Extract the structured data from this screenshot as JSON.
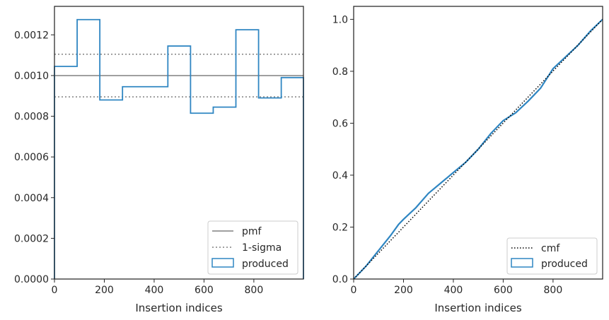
{
  "colors": {
    "produced": "#2f86c2",
    "reference": "#808080",
    "cmf": "#000000",
    "axes": "#262626",
    "legend_border": "#cccccc"
  },
  "chart_data": [
    {
      "type": "step",
      "xlabel": "Insertion indices",
      "ylabel": "",
      "xlim": [
        0,
        999
      ],
      "ylim": [
        0,
        0.00134
      ],
      "xticks": [
        0,
        200,
        400,
        600,
        800
      ],
      "xtick_labels": [
        "0",
        "200",
        "400",
        "600",
        "800"
      ],
      "yticks": [
        0,
        0.0002,
        0.0004,
        0.0006,
        0.0008,
        0.001,
        0.0012
      ],
      "ytick_labels": [
        "0.0000",
        "0.0002",
        "0.0004",
        "0.0006",
        "0.0008",
        "0.0010",
        "0.0012"
      ],
      "legend_position": "lower-right",
      "legend": [
        "pmf",
        "1-sigma",
        "produced"
      ],
      "grid": false,
      "pmf": 0.001,
      "sigma_band": [
        0.000895,
        0.001105
      ],
      "bin_edges": [
        0,
        91,
        182,
        273,
        364,
        455,
        546,
        637,
        728,
        819,
        910,
        999
      ],
      "produced": [
        0.001045,
        0.001275,
        0.00088,
        0.000945,
        0.000945,
        0.001145,
        0.000815,
        0.000845,
        0.001225,
        0.00089,
        0.00099
      ]
    },
    {
      "type": "line",
      "xlabel": "Insertion indices",
      "ylabel": "",
      "xlim": [
        0,
        999
      ],
      "ylim": [
        0,
        1.05
      ],
      "xticks": [
        0,
        200,
        400,
        600,
        800
      ],
      "xtick_labels": [
        "0",
        "200",
        "400",
        "600",
        "800"
      ],
      "yticks": [
        0,
        0.2,
        0.4,
        0.6,
        0.8,
        1.0
      ],
      "ytick_labels": [
        "0.0",
        "0.2",
        "0.4",
        "0.6",
        "0.8",
        "1.0"
      ],
      "legend_position": "lower-right",
      "legend": [
        "cmf",
        "produced"
      ],
      "grid": false,
      "cmf_x": [
        0,
        999
      ],
      "cmf_y": [
        0,
        1.0
      ],
      "produced_x": [
        0,
        50,
        100,
        150,
        180,
        200,
        250,
        300,
        350,
        400,
        450,
        500,
        550,
        600,
        650,
        700,
        750,
        800,
        850,
        900,
        950,
        999
      ],
      "produced_y": [
        0,
        0.05,
        0.11,
        0.17,
        0.21,
        0.23,
        0.275,
        0.33,
        0.37,
        0.41,
        0.45,
        0.5,
        0.56,
        0.61,
        0.64,
        0.685,
        0.735,
        0.81,
        0.855,
        0.9,
        0.955,
        1.0
      ]
    }
  ]
}
